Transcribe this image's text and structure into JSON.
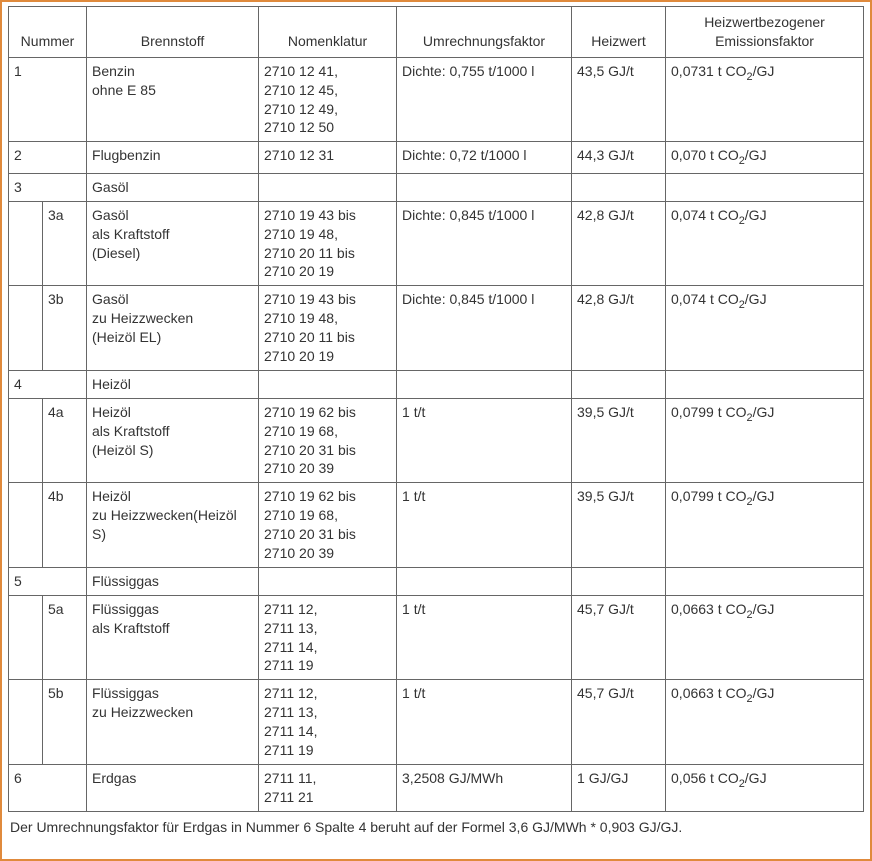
{
  "headers": {
    "nummer": "Nummer",
    "brennstoff": "Brennstoff",
    "nomenklatur": "Nomenklatur",
    "umrechnungsfaktor": "Umrechnungsfaktor",
    "heizwert": "Heizwert",
    "emissionsfaktor": "Heizwertbezogener Emissionsfaktor"
  },
  "rows": {
    "r1": {
      "num": "1",
      "fuel_l1": "Benzin",
      "fuel_l2": "ohne E 85",
      "nom_l1": "2710 12 41,",
      "nom_l2": "2710 12 45,",
      "nom_l3": "2710 12 49,",
      "nom_l4": "2710 12 50",
      "umr": "Dichte: 0,755 t/1000 l",
      "heiz": "43,5 GJ/t",
      "emis_pre": "0,0731 t CO",
      "emis_sub": "2",
      "emis_post": "/GJ"
    },
    "r2": {
      "num": "2",
      "fuel": "Flugbenzin",
      "nom": "2710 12 31",
      "umr": "Dichte: 0,72 t/1000 l",
      "heiz": "44,3 GJ/t",
      "emis_pre": "0,070 t CO",
      "emis_sub": "2",
      "emis_post": "/GJ"
    },
    "r3": {
      "num": "3",
      "fuel": "Gasöl"
    },
    "r3a": {
      "num": "3a",
      "fuel_l1": "Gasöl",
      "fuel_l2": "als Kraftstoff",
      "fuel_l3": "(Diesel)",
      "nom_l1": "2710 19 43 bis",
      "nom_l2": "2710 19 48,",
      "nom_l3": "2710 20 11 bis",
      "nom_l4": "2710 20 19",
      "umr": "Dichte: 0,845 t/1000 l",
      "heiz": "42,8 GJ/t",
      "emis_pre": "0,074 t CO",
      "emis_sub": "2",
      "emis_post": "/GJ"
    },
    "r3b": {
      "num": "3b",
      "fuel_l1": "Gasöl",
      "fuel_l2": "zu Heizzwecken",
      "fuel_l3": "(Heizöl EL)",
      "nom_l1": "2710 19 43 bis",
      "nom_l2": "2710 19 48,",
      "nom_l3": "2710 20 11 bis",
      "nom_l4": "2710 20 19",
      "umr": "Dichte: 0,845 t/1000 l",
      "heiz": "42,8 GJ/t",
      "emis_pre": "0,074 t CO",
      "emis_sub": "2",
      "emis_post": "/GJ"
    },
    "r4": {
      "num": "4",
      "fuel": "Heizöl"
    },
    "r4a": {
      "num": "4a",
      "fuel_l1": "Heizöl",
      "fuel_l2": "als Kraftstoff",
      "fuel_l3": "(Heizöl S)",
      "nom_l1": "2710 19 62 bis",
      "nom_l2": "2710 19 68,",
      "nom_l3": "2710 20 31 bis",
      "nom_l4": "2710 20 39",
      "umr": "1 t/t",
      "heiz": "39,5 GJ/t",
      "emis_pre": "0,0799 t CO",
      "emis_sub": "2",
      "emis_post": "/GJ"
    },
    "r4b": {
      "num": "4b",
      "fuel_l1": "Heizöl",
      "fuel_l2": "zu Heizzwecken(Heizöl S)",
      "nom_l1": "2710 19 62 bis",
      "nom_l2": "2710 19 68,",
      "nom_l3": "2710 20 31 bis",
      "nom_l4": "2710 20 39",
      "umr": "1 t/t",
      "heiz": "39,5 GJ/t",
      "emis_pre": "0,0799 t CO",
      "emis_sub": "2",
      "emis_post": "/GJ"
    },
    "r5": {
      "num": "5",
      "fuel": "Flüssiggas"
    },
    "r5a": {
      "num": "5a",
      "fuel_l1": "Flüssiggas",
      "fuel_l2": "als Kraftstoff",
      "nom_l1": "2711 12,",
      "nom_l2": "2711 13,",
      "nom_l3": "2711 14,",
      "nom_l4": "2711 19",
      "umr": "1 t/t",
      "heiz": "45,7 GJ/t",
      "emis_pre": "0,0663 t CO",
      "emis_sub": "2",
      "emis_post": "/GJ"
    },
    "r5b": {
      "num": "5b",
      "fuel_l1": "Flüssiggas",
      "fuel_l2": "zu Heizzwecken",
      "nom_l1": "2711 12,",
      "nom_l2": "2711 13,",
      "nom_l3": "2711 14,",
      "nom_l4": "2711 19",
      "umr": "1 t/t",
      "heiz": "45,7 GJ/t",
      "emis_pre": "0,0663 t CO",
      "emis_sub": "2",
      "emis_post": "/GJ"
    },
    "r6": {
      "num": "6",
      "fuel": "Erdgas",
      "nom_l1": "2711 11,",
      "nom_l2": "2711 21",
      "umr": "3,2508 GJ/MWh",
      "heiz": "1 GJ/GJ",
      "emis_pre": "0,056 t CO",
      "emis_sub": "2",
      "emis_post": "/GJ"
    }
  },
  "footnote": "Der Umrechnungsfaktor für Erdgas in Nummer 6 Spalte 4 beruht auf der Formel 3,6 GJ/MWh * 0,903 GJ/GJ."
}
